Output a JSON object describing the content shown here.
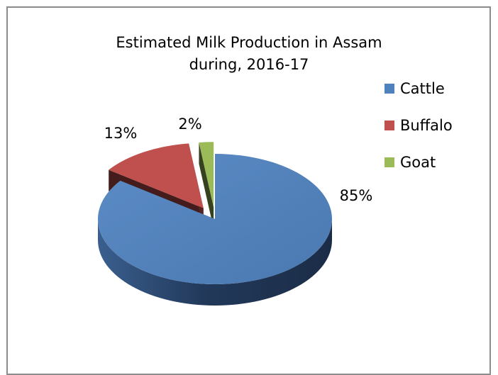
{
  "chart_data": {
    "type": "pie",
    "title": [
      "Estimated Milk Production in Assam",
      "during, 2016-17"
    ],
    "categories": [
      "Cattle",
      "Buffalo",
      "Goat"
    ],
    "values": [
      85,
      13,
      2
    ],
    "data_labels": [
      "85%",
      "13%",
      "2%"
    ],
    "colors": [
      "#4F81BD",
      "#C0504D",
      "#9BBB59"
    ],
    "exploded": true,
    "three_d": true,
    "legend_position": "right"
  }
}
